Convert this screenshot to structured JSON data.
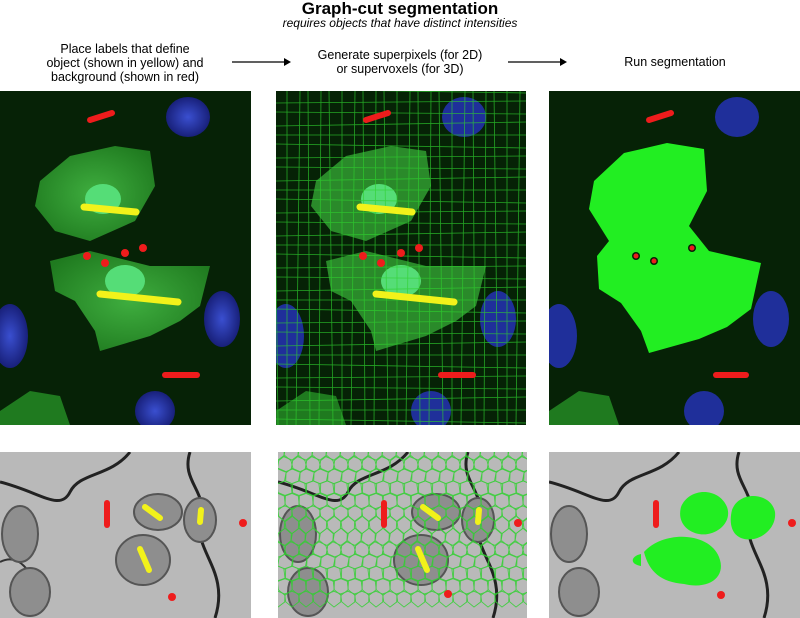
{
  "header": {
    "title": "Graph-cut segmentation",
    "subtitle": "requires objects that have distinct intensities"
  },
  "steps": [
    {
      "line1": "Place labels that define",
      "line2": "object (shown in yellow) and",
      "line3": "background (shown in red)"
    },
    {
      "line1": "Generate superpixels (for 2D)",
      "line2": "or supervoxels (for 3D)"
    },
    {
      "line1": "Run segmentation"
    }
  ],
  "colors": {
    "object_label": "#f2f21a",
    "background_label": "#ee1c1c",
    "segmentation": "#22ee22",
    "superpixel_grid": "#2fd12f",
    "fluor_background": "#062206",
    "nucleus_blue": "#1f2f9a",
    "em_background": "#b9b9b9"
  }
}
